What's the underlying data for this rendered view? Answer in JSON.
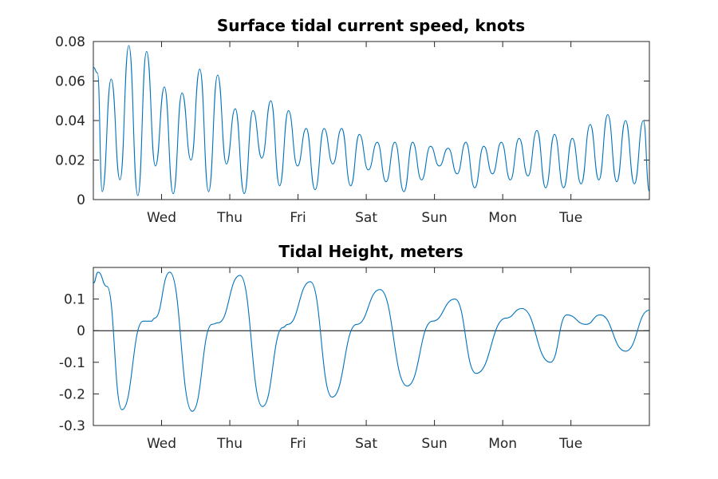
{
  "chart_data": [
    {
      "type": "line",
      "title": "Surface tidal current speed, knots",
      "xlabel": "",
      "ylabel": "",
      "x_unit": "day",
      "x_range": [
        0,
        8.15
      ],
      "xticks": [
        {
          "label": "Wed",
          "x": 1
        },
        {
          "label": "Thu",
          "x": 2
        },
        {
          "label": "Fri",
          "x": 3
        },
        {
          "label": "Sat",
          "x": 4
        },
        {
          "label": "Sun",
          "x": 5
        },
        {
          "label": "Mon",
          "x": 6
        },
        {
          "label": "Tue",
          "x": 7
        }
      ],
      "ylim": [
        0,
        0.08
      ],
      "yticks": [
        "0",
        "0.02",
        "0.04",
        "0.06",
        "0.08"
      ],
      "grid": false,
      "legend": "none",
      "color": "#0072BD",
      "series": [
        {
          "x": [
            0,
            0.062,
            0.13,
            0.262,
            0.39,
            0.52,
            0.652,
            0.78,
            0.91,
            1.042,
            1.17,
            1.3,
            1.432,
            1.56,
            1.69,
            1.822,
            1.95,
            2.08,
            2.212,
            2.34,
            2.47,
            2.602,
            2.73,
            2.86,
            2.992,
            3.12,
            3.25,
            3.382,
            3.51,
            3.64,
            3.772,
            3.9,
            4.03,
            4.162,
            4.29,
            4.42,
            4.552,
            4.68,
            4.81,
            4.942,
            5.07,
            5.2,
            5.332,
            5.46,
            5.59,
            5.722,
            5.85,
            5.98,
            6.112,
            6.24,
            6.37,
            6.502,
            6.63,
            6.76,
            6.892,
            7.02,
            7.15,
            7.282,
            7.41,
            7.54,
            7.672,
            7.8,
            7.93,
            8.062,
            8.15
          ],
          "y": [
            0.067,
            0.064,
            0.004,
            0.061,
            0.01,
            0.078,
            0.002,
            0.075,
            0.017,
            0.057,
            0.003,
            0.054,
            0.02,
            0.066,
            0.004,
            0.063,
            0.018,
            0.046,
            0.003,
            0.045,
            0.021,
            0.05,
            0.007,
            0.045,
            0.017,
            0.036,
            0.005,
            0.036,
            0.018,
            0.036,
            0.007,
            0.033,
            0.015,
            0.029,
            0.009,
            0.029,
            0.004,
            0.029,
            0.01,
            0.027,
            0.017,
            0.026,
            0.013,
            0.029,
            0.006,
            0.027,
            0.013,
            0.029,
            0.01,
            0.031,
            0.012,
            0.035,
            0.006,
            0.033,
            0.006,
            0.031,
            0.008,
            0.038,
            0.01,
            0.043,
            0.009,
            0.04,
            0.008,
            0.04,
            0.004
          ]
        }
      ]
    },
    {
      "type": "line",
      "title": "Tidal Height, meters",
      "xlabel": "",
      "ylabel": "",
      "x_unit": "day",
      "x_range": [
        0,
        8.15
      ],
      "xticks": [
        {
          "label": "Wed",
          "x": 1
        },
        {
          "label": "Thu",
          "x": 2
        },
        {
          "label": "Fri",
          "x": 3
        },
        {
          "label": "Sat",
          "x": 4
        },
        {
          "label": "Sun",
          "x": 5
        },
        {
          "label": "Mon",
          "x": 6
        },
        {
          "label": "Tue",
          "x": 7
        }
      ],
      "ylim": [
        -0.3,
        0.2
      ],
      "yticks": [
        "-0.3",
        "-0.2",
        "-0.1",
        "0",
        "0.1"
      ],
      "reference_line_y": 0,
      "grid": false,
      "legend": "none",
      "color": "#0072BD",
      "series": [
        {
          "x": [
            0,
            0.07,
            0.2,
            0.42,
            0.73,
            0.85,
            0.9,
            1.12,
            1.45,
            1.74,
            1.83,
            2.15,
            2.48,
            2.78,
            2.85,
            3.18,
            3.5,
            3.86,
            4.2,
            4.6,
            4.97,
            5.3,
            5.61,
            6.05,
            6.28,
            6.7,
            6.94,
            7.22,
            7.43,
            7.8,
            8.15
          ],
          "y": [
            0.15,
            0.185,
            0.14,
            -0.25,
            0.03,
            0.03,
            0.04,
            0.185,
            -0.255,
            0.02,
            0.025,
            0.175,
            -0.24,
            0.01,
            0.02,
            0.155,
            -0.21,
            0.02,
            0.13,
            -0.175,
            0.03,
            0.1,
            -0.135,
            0.04,
            0.07,
            -0.1,
            0.05,
            0.02,
            0.05,
            -0.065,
            0.065
          ]
        }
      ]
    }
  ]
}
